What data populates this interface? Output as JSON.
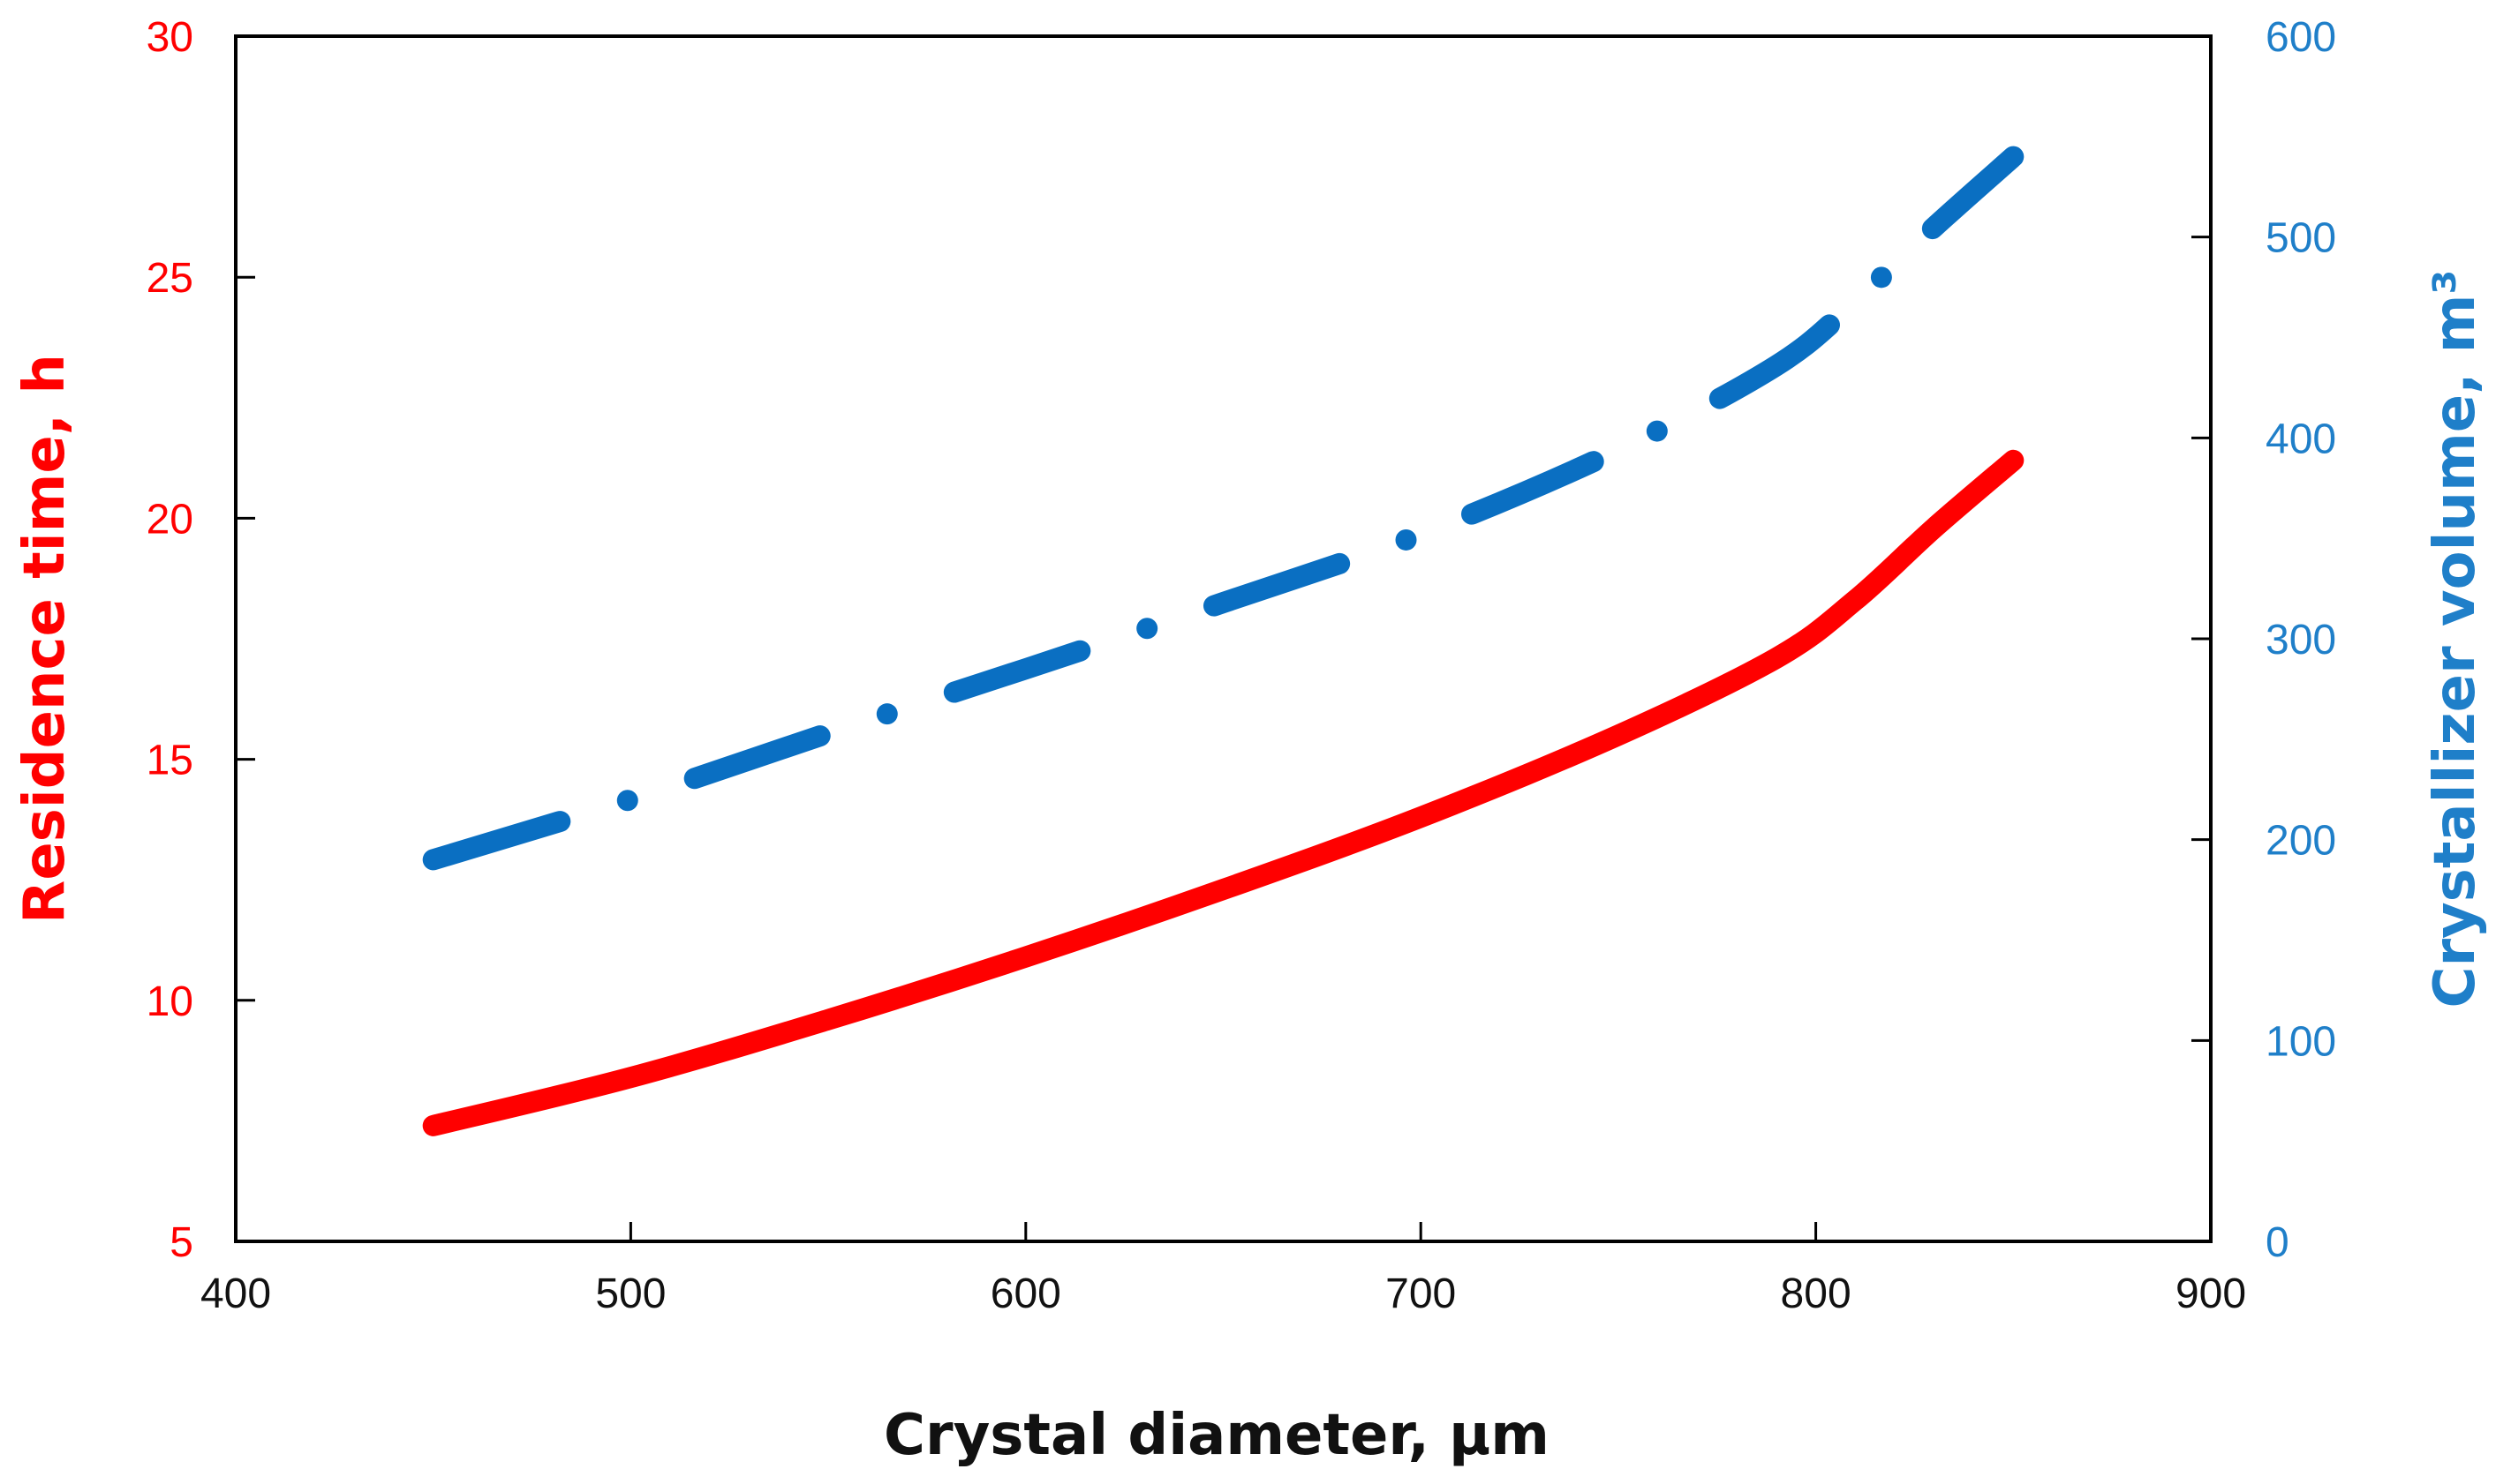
{
  "chart_data": {
    "type": "line",
    "title": "",
    "xlabel": "Crystal diameter, μm",
    "ylabel_left": "Residence time, h",
    "ylabel_right": "Crystallizer volume, m³",
    "xlim": [
      400,
      900
    ],
    "ylim_left": [
      5,
      30
    ],
    "ylim_right": [
      0,
      600
    ],
    "x_ticks": [
      "400",
      "500",
      "600",
      "700",
      "800",
      "900"
    ],
    "y_left_ticks": [
      "5",
      "10",
      "15",
      "20",
      "25",
      "30"
    ],
    "y_right_ticks": [
      "0",
      "100",
      "200",
      "300",
      "400",
      "500",
      "600"
    ],
    "grid": false,
    "legend": false,
    "colors": {
      "left_axis": "#ff0000",
      "right_axis": "#1f7fc9",
      "residence_line": "#ff0000",
      "volume_line": "#0a6fc2",
      "frame": "#000000"
    },
    "series": [
      {
        "axis": "left",
        "style": "solid",
        "x": [
          450,
          500,
          550,
          600,
          650,
          700,
          750,
          790,
          810,
          830,
          850
        ],
        "y": [
          7.4,
          8.4,
          9.6,
          10.9,
          12.3,
          13.8,
          15.5,
          17.1,
          18.3,
          19.8,
          21.2
        ]
      },
      {
        "axis": "right",
        "style": "dash-dot",
        "x": [
          450,
          500,
          550,
          600,
          650,
          700,
          750,
          790,
          810,
          830,
          850
        ],
        "y": [
          190,
          220,
          253,
          285,
          318,
          352,
          394,
          436,
          468,
          505,
          540
        ]
      }
    ]
  }
}
